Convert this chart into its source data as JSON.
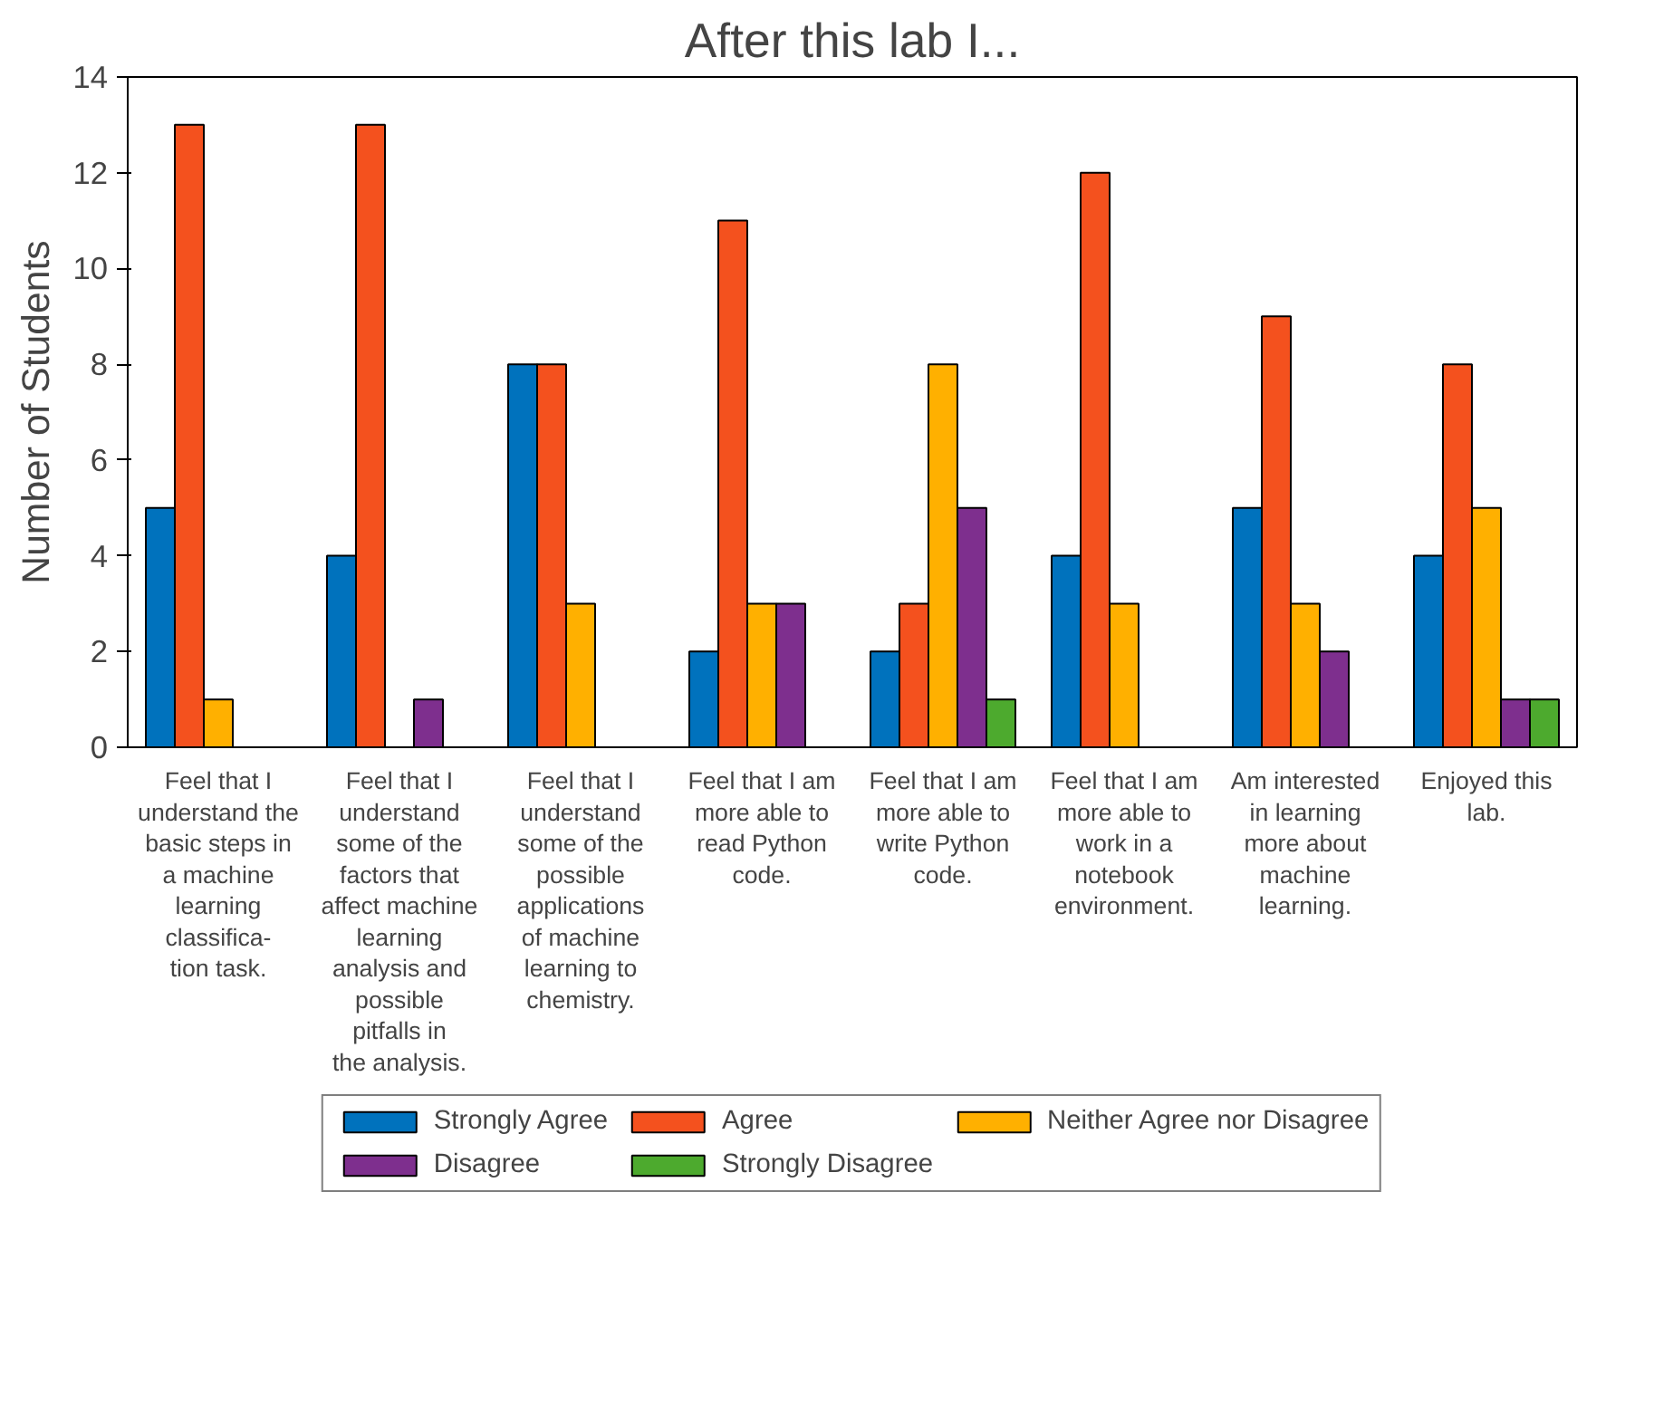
{
  "chart_data": {
    "type": "bar",
    "title": "After this lab I...",
    "ylabel": "Number of Students",
    "categories": [
      "Feel that I understand the basic steps in a machine learning classifica- tion task.",
      "Feel that I understand some of the factors that affect machine learning analysis and possible pitfalls in the analysis.",
      "Feel that I understand some of the possible applications of machine learning to chemistry.",
      "Feel that I am more able to read Python code.",
      "Feel that I am more able to write Python code.",
      "Feel that I am more able to work in a notebook environment.",
      "Am interested in learning more about machine learning.",
      "Enjoyed this lab."
    ],
    "series": [
      {
        "name": "Strongly Agree",
        "color": "#0072bd",
        "values": [
          5,
          4,
          8,
          2,
          2,
          4,
          5,
          4
        ]
      },
      {
        "name": "Agree",
        "color": "#f4511e",
        "values": [
          13,
          13,
          8,
          11,
          3,
          12,
          9,
          8
        ]
      },
      {
        "name": "Neither Agree nor Disagree",
        "color": "#ffb000",
        "values": [
          1,
          0,
          3,
          3,
          8,
          3,
          3,
          5
        ]
      },
      {
        "name": "Disagree",
        "color": "#7e2f8e",
        "values": [
          0,
          1,
          0,
          3,
          5,
          0,
          2,
          1
        ]
      },
      {
        "name": "Strongly Disagree",
        "color": "#4daa2e",
        "values": [
          0,
          0,
          0,
          0,
          1,
          0,
          0,
          1
        ]
      }
    ],
    "ylim": [
      0,
      14
    ],
    "yticks": [
      0,
      2,
      4,
      6,
      8,
      10,
      12,
      14
    ],
    "grid": false,
    "legend": "bottom"
  }
}
